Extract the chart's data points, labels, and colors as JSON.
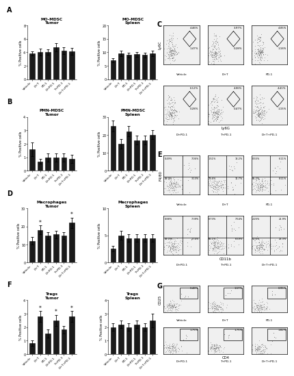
{
  "categories": [
    "Vehicle",
    "D+T",
    "PD-1",
    "D+PD-1",
    "T+PD-1",
    "D+T+PD-1"
  ],
  "A_tumor": [
    3.8,
    4.0,
    4.0,
    4.7,
    4.2,
    4.1
  ],
  "A_tumor_err": [
    0.3,
    0.5,
    0.4,
    0.6,
    0.5,
    0.5
  ],
  "A_spleen": [
    7.0,
    9.5,
    9.0,
    9.2,
    9.0,
    9.5
  ],
  "A_spleen_err": [
    0.8,
    1.0,
    0.9,
    0.8,
    0.9,
    1.0
  ],
  "B_tumor": [
    1.6,
    0.7,
    1.0,
    1.0,
    1.0,
    0.9
  ],
  "B_tumor_err": [
    0.5,
    0.2,
    0.3,
    0.3,
    0.3,
    0.3
  ],
  "B_spleen": [
    25.0,
    15.0,
    22.0,
    17.0,
    17.0,
    20.0
  ],
  "B_spleen_err": [
    3.0,
    2.5,
    3.0,
    2.5,
    2.5,
    2.5
  ],
  "D_tumor": [
    12.0,
    18.0,
    15.0,
    15.5,
    15.0,
    22.0
  ],
  "D_tumor_err": [
    2.0,
    2.5,
    2.0,
    2.0,
    2.0,
    3.0
  ],
  "D_spleen": [
    2.5,
    5.0,
    4.5,
    4.5,
    4.5,
    4.5
  ],
  "D_spleen_err": [
    0.5,
    0.8,
    0.7,
    0.7,
    0.7,
    0.7
  ],
  "F_tumor": [
    0.8,
    2.8,
    1.5,
    2.5,
    1.8,
    2.8
  ],
  "F_tumor_err": [
    0.2,
    0.4,
    0.3,
    0.4,
    0.3,
    0.4
  ],
  "F_spleen": [
    2.0,
    2.2,
    2.0,
    2.2,
    2.0,
    2.5
  ],
  "F_spleen_err": [
    0.3,
    0.3,
    0.3,
    0.3,
    0.3,
    0.5
  ],
  "bar_color": "#1a1a1a",
  "A_tumor_ylim": [
    0,
    8
  ],
  "A_spleen_ylim": [
    0,
    20
  ],
  "B_tumor_ylim": [
    0,
    4
  ],
  "B_spleen_ylim": [
    0,
    30
  ],
  "D_tumor_ylim": [
    0,
    30
  ],
  "D_spleen_ylim": [
    0,
    10
  ],
  "F_tumor_ylim": [
    0,
    4
  ],
  "F_spleen_ylim": [
    0,
    4
  ],
  "C_labels_top": [
    "Vehicle",
    "D+T",
    "PD-1"
  ],
  "C_labels_bot": [
    "D+PD-1",
    "T+PD-1",
    "D+T+PD-1"
  ],
  "C_vals_top_upper": [
    "4.46%",
    "3.97%",
    "4.05%"
  ],
  "C_vals_top_lower": [
    "1.47%",
    "0.28%",
    "1.16%"
  ],
  "C_vals_bot_upper": [
    "6.12%",
    "4.06%",
    "4.41%"
  ],
  "C_vals_bot_lower": [
    "0.28%",
    "0.47%",
    "1.15%"
  ],
  "E_labels_top": [
    "Vehicle",
    "D+T",
    "PD-1"
  ],
  "E_labels_bot": [
    "D+PD-1",
    "T+PD-1",
    "D+T+PD-1"
  ],
  "E_vals_top_ul": [
    "0.49%",
    "1.51%",
    "0.55%"
  ],
  "E_vals_top_ur": [
    "7.06%",
    "13.2%",
    "6.11%"
  ],
  "E_vals_top_ll": [
    "89.3%",
    "73.6%",
    "85.2%"
  ],
  "E_vals_top_lr": [
    "3.13%",
    "11.7%",
    "8.11%"
  ],
  "E_vals_bot_ul": [
    "0.88%",
    "0.73%",
    "2.25%"
  ],
  "E_vals_bot_ur": [
    "7.39%",
    "7.54%",
    "21.9%"
  ],
  "E_vals_bot_ll": [
    "89.0%",
    "85.1%",
    "50.6%"
  ],
  "E_vals_bot_lr": [
    "2.74%",
    "6.59%",
    "25.3%"
  ],
  "G_labels_top": [
    "Vehicle",
    "D+T",
    "PD-1"
  ],
  "G_labels_bot": [
    "D+PD-1",
    "T+PD-1",
    "D+T+PD-1"
  ],
  "G_vals_top": [
    "0.48%",
    "1.57%",
    "0.95%"
  ],
  "G_vals_bot": [
    "1.75%",
    "1.75%",
    "1.82%"
  ]
}
